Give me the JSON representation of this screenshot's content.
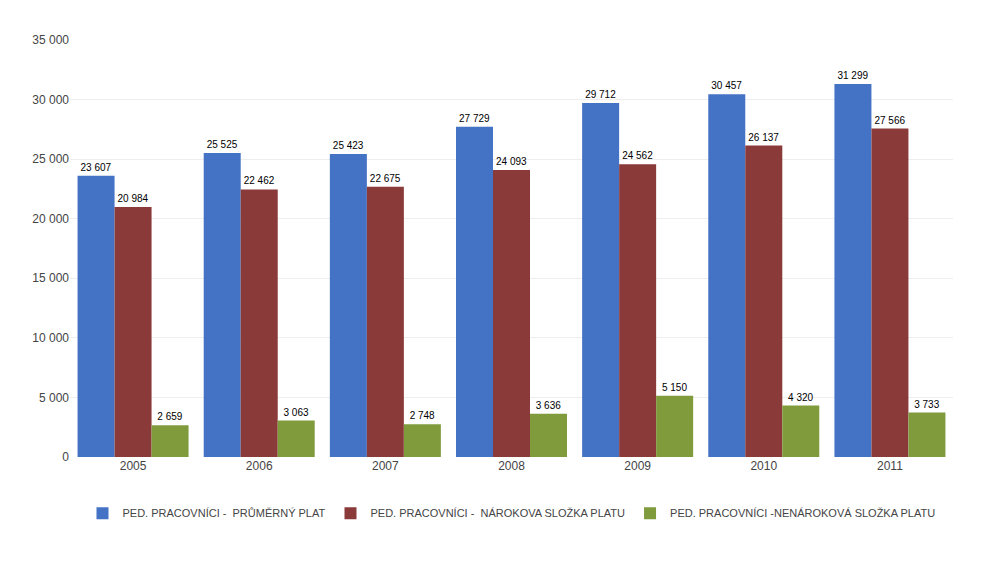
{
  "chart_data": {
    "type": "bar",
    "categories": [
      "2005",
      "2006",
      "2007",
      "2008",
      "2009",
      "2010",
      "2011"
    ],
    "series": [
      {
        "name": "PED. PRACOVNÍCI -  PRŮMĚRNÝ PLAT",
        "color": "#4472C4",
        "values": [
          23607,
          25525,
          25423,
          27729,
          29712,
          30457,
          31299
        ],
        "value_labels": [
          "23 607",
          "25 525",
          "25 423",
          "27 729",
          "29 712",
          "30 457",
          "31 299"
        ]
      },
      {
        "name": "PED. PRACOVNÍCI -  NÁROKOVA SLOŽKA PLATU",
        "color": "#8B3A3A",
        "values": [
          20984,
          22462,
          22675,
          24093,
          24562,
          26137,
          27566
        ],
        "value_labels": [
          "20 984",
          "22 462",
          "22 675",
          "24 093",
          "24 562",
          "26 137",
          "27 566"
        ]
      },
      {
        "name": "PED. PRACOVNÍCI -NENÁROKOVÁ SLOŽKA PLATU",
        "color": "#7F9B3C",
        "values": [
          2659,
          3063,
          2748,
          3636,
          5150,
          4320,
          3733
        ],
        "value_labels": [
          "2 659",
          "3 063",
          "2 748",
          "3 636",
          "5 150",
          "4 320",
          "3 733"
        ]
      }
    ],
    "ylim": [
      0,
      35000
    ],
    "yticks": [
      0,
      {
        "value": 5000,
        "label": "5 000"
      },
      {
        "value": 10000,
        "label": "10 000"
      },
      {
        "value": 15000,
        "label": "15 000"
      },
      {
        "value": 20000,
        "label": "20 000"
      },
      {
        "value": 25000,
        "label": "25 000"
      },
      {
        "value": 30000,
        "label": "30 000"
      },
      {
        "value": 35000,
        "label": "35 000"
      }
    ],
    "grid": true,
    "legend": "bottom",
    "data_labels": true
  }
}
